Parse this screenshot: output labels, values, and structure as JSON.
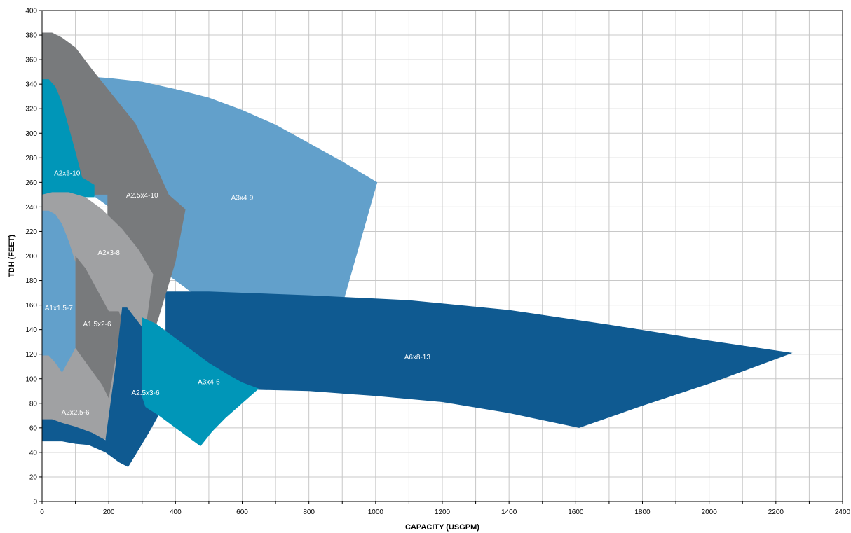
{
  "chart_data": {
    "type": "area",
    "xlabel": "CAPACITY (USGPM)",
    "ylabel": "TDH (FEET)",
    "xlim": [
      0,
      2400
    ],
    "ylim": [
      0,
      400
    ],
    "x_ticks": [
      0,
      200,
      400,
      600,
      800,
      1000,
      1200,
      1400,
      1600,
      1800,
      2000,
      2200,
      2400
    ],
    "y_ticks": [
      0,
      20,
      40,
      60,
      80,
      100,
      120,
      140,
      160,
      180,
      200,
      220,
      240,
      260,
      280,
      300,
      320,
      340,
      360,
      380,
      400
    ],
    "grid": true,
    "regions": [
      {
        "name": "A3x4-9",
        "color": "#62a0cb",
        "label_at": [
          600,
          248
        ],
        "points": [
          [
            0,
            345
          ],
          [
            100,
            347
          ],
          [
            200,
            345
          ],
          [
            300,
            342
          ],
          [
            400,
            336
          ],
          [
            500,
            329
          ],
          [
            600,
            319
          ],
          [
            700,
            307
          ],
          [
            800,
            292
          ],
          [
            900,
            277
          ],
          [
            1005,
            260
          ],
          [
            850,
            112
          ],
          [
            500,
            160
          ],
          [
            370,
            186
          ],
          [
            300,
            200
          ],
          [
            250,
            220
          ],
          [
            200,
            240
          ],
          [
            150,
            250
          ],
          [
            100,
            255
          ],
          [
            0,
            255
          ]
        ]
      },
      {
        "name": "A6x8-13",
        "color": "#0f5a91",
        "label_at": [
          1125,
          118
        ],
        "points": [
          [
            370,
            171
          ],
          [
            500,
            171
          ],
          [
            800,
            168
          ],
          [
            1100,
            164
          ],
          [
            1400,
            156
          ],
          [
            1700,
            144
          ],
          [
            2000,
            131
          ],
          [
            2250,
            121
          ],
          [
            2000,
            96
          ],
          [
            1800,
            78
          ],
          [
            1610,
            60
          ],
          [
            1400,
            72
          ],
          [
            1200,
            81
          ],
          [
            1000,
            86
          ],
          [
            800,
            90
          ],
          [
            650,
            91
          ],
          [
            500,
            95
          ],
          [
            370,
            100
          ]
        ]
      },
      {
        "name": "A2.5x4-10",
        "color": "#787a7c",
        "label_at": [
          300,
          250
        ],
        "points": [
          [
            0,
            382
          ],
          [
            30,
            382
          ],
          [
            60,
            378
          ],
          [
            100,
            370
          ],
          [
            150,
            352
          ],
          [
            200,
            335
          ],
          [
            280,
            308
          ],
          [
            330,
            280
          ],
          [
            380,
            250
          ],
          [
            430,
            238
          ],
          [
            400,
            195
          ],
          [
            350,
            150
          ],
          [
            300,
            110
          ],
          [
            250,
            80
          ],
          [
            196,
            84
          ],
          [
            196,
            250
          ],
          [
            0,
            250
          ]
        ]
      },
      {
        "name": "A2x3-10",
        "color": "#0096b8",
        "label_at": [
          75,
          268
        ],
        "points": [
          [
            0,
            344
          ],
          [
            20,
            344
          ],
          [
            40,
            338
          ],
          [
            60,
            325
          ],
          [
            80,
            305
          ],
          [
            100,
            285
          ],
          [
            120,
            264
          ],
          [
            157,
            258
          ],
          [
            157,
            248
          ],
          [
            0,
            248
          ]
        ]
      },
      {
        "name": "A2x3-8",
        "color": "#a0a1a3",
        "label_at": [
          200,
          203
        ],
        "points": [
          [
            0,
            250
          ],
          [
            30,
            252
          ],
          [
            80,
            252
          ],
          [
            130,
            248
          ],
          [
            180,
            238
          ],
          [
            240,
            222
          ],
          [
            290,
            205
          ],
          [
            333,
            185
          ],
          [
            310,
            140
          ],
          [
            290,
            113
          ],
          [
            250,
            80
          ],
          [
            220,
            70
          ],
          [
            200,
            64
          ],
          [
            100,
            64
          ],
          [
            0,
            64
          ]
        ]
      },
      {
        "name": "A1x1.5-7",
        "color": "#62a0cb",
        "label_at": [
          50,
          158
        ],
        "points": [
          [
            0,
            237
          ],
          [
            20,
            237
          ],
          [
            40,
            234
          ],
          [
            60,
            226
          ],
          [
            80,
            212
          ],
          [
            100,
            195
          ],
          [
            100,
            80
          ],
          [
            80,
            85
          ],
          [
            60,
            95
          ],
          [
            40,
            103
          ],
          [
            0,
            105
          ]
        ]
      },
      {
        "name": "A1.5x2-6",
        "color": "#787a7c",
        "label_at": [
          165,
          145
        ],
        "points": [
          [
            100,
            200
          ],
          [
            130,
            190
          ],
          [
            160,
            175
          ],
          [
            200,
            155
          ],
          [
            230,
            155
          ],
          [
            240,
            148
          ],
          [
            200,
            84
          ],
          [
            190,
            84
          ],
          [
            160,
            96
          ],
          [
            120,
            105
          ],
          [
            100,
            108
          ]
        ]
      },
      {
        "name": "A2x2.5-6",
        "color": "#a0a1a3",
        "label_at": [
          100,
          73
        ],
        "points": [
          [
            0,
            119
          ],
          [
            20,
            119
          ],
          [
            40,
            113
          ],
          [
            60,
            105
          ],
          [
            100,
            125
          ],
          [
            140,
            110
          ],
          [
            180,
            95
          ],
          [
            200,
            84
          ],
          [
            230,
            70
          ],
          [
            200,
            50
          ],
          [
            150,
            52
          ],
          [
            100,
            55
          ],
          [
            50,
            60
          ],
          [
            0,
            62
          ]
        ]
      },
      {
        "name": "A2.5x3-6",
        "color": "#0f5a91",
        "label_at": [
          310,
          89
        ],
        "points": [
          [
            0,
            67
          ],
          [
            30,
            67
          ],
          [
            60,
            64
          ],
          [
            100,
            61
          ],
          [
            150,
            56
          ],
          [
            190,
            50
          ],
          [
            220,
            110
          ],
          [
            240,
            158
          ],
          [
            255,
            158
          ],
          [
            300,
            142
          ],
          [
            350,
            130
          ],
          [
            430,
            113
          ],
          [
            380,
            85
          ],
          [
            320,
            56
          ],
          [
            258,
            28
          ],
          [
            230,
            32
          ],
          [
            190,
            40
          ],
          [
            140,
            46
          ],
          [
            100,
            47
          ],
          [
            60,
            49
          ],
          [
            30,
            49
          ],
          [
            0,
            49
          ]
        ]
      },
      {
        "name": "A3x4-6",
        "color": "#0096b8",
        "label_at": [
          500,
          98
        ],
        "points": [
          [
            300,
            150
          ],
          [
            340,
            145
          ],
          [
            390,
            135
          ],
          [
            440,
            125
          ],
          [
            500,
            113
          ],
          [
            560,
            103
          ],
          [
            600,
            97
          ],
          [
            650,
            92
          ],
          [
            600,
            80
          ],
          [
            550,
            68
          ],
          [
            510,
            57
          ],
          [
            475,
            45
          ],
          [
            450,
            50
          ],
          [
            400,
            60
          ],
          [
            350,
            70
          ],
          [
            310,
            77
          ],
          [
            300,
            85
          ]
        ]
      }
    ]
  }
}
